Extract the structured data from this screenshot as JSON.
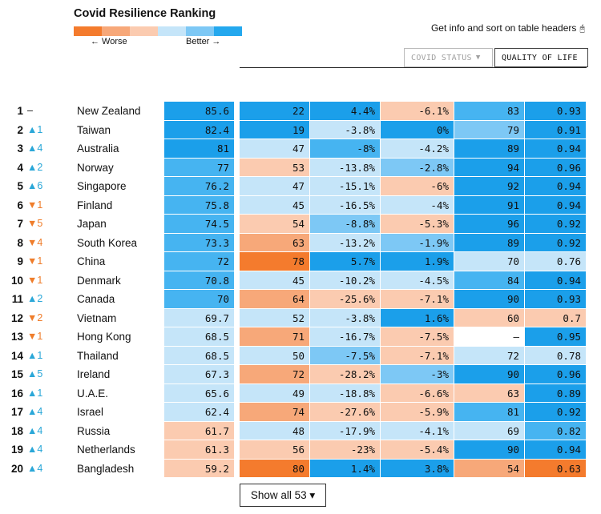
{
  "title": "Covid Resilience Ranking",
  "legend": {
    "worse": "← Worse",
    "better": "Better →",
    "colors": [
      "#f47b2d",
      "#f7a879",
      "#fbcbb0",
      "#c5e5f9",
      "#7dc8f5",
      "#24a8ee"
    ]
  },
  "info": {
    "text": "Get info and sort on table headers",
    "icon": "mouse-icon",
    "glyph": "🖰"
  },
  "tabs": [
    {
      "label": "COVID STATUS",
      "caret": "▼"
    },
    {
      "label": "QUALITY OF LIFE"
    }
  ],
  "rows": [
    {
      "rank": "1",
      "change": "–",
      "dir": "none",
      "country": "New Zealand",
      "vals": [
        "85.6",
        "22",
        "4.4%",
        "-6.1%",
        "83",
        "0.93"
      ],
      "colors": [
        "#1b9fea",
        "#1b9fea",
        "#1b9fea",
        "#fbcbb0",
        "#46b4f1",
        "#1b9fea"
      ]
    },
    {
      "rank": "2",
      "change": "▲1",
      "dir": "up",
      "country": "Taiwan",
      "vals": [
        "82.4",
        "19",
        "-3.8%",
        "0%",
        "79",
        "0.91"
      ],
      "colors": [
        "#1b9fea",
        "#1b9fea",
        "#c5e5f9",
        "#1b9fea",
        "#7dc8f5",
        "#1b9fea"
      ]
    },
    {
      "rank": "3",
      "change": "▲4",
      "dir": "up",
      "country": "Australia",
      "vals": [
        "81",
        "47",
        "-8%",
        "-4.2%",
        "89",
        "0.94"
      ],
      "colors": [
        "#1b9fea",
        "#c5e5f9",
        "#46b4f1",
        "#c5e5f9",
        "#1b9fea",
        "#1b9fea"
      ]
    },
    {
      "rank": "4",
      "change": "▲2",
      "dir": "up",
      "country": "Norway",
      "vals": [
        "77",
        "53",
        "-13.8%",
        "-2.8%",
        "94",
        "0.96"
      ],
      "colors": [
        "#46b4f1",
        "#fbcbb0",
        "#c5e5f9",
        "#7dc8f5",
        "#1b9fea",
        "#1b9fea"
      ]
    },
    {
      "rank": "5",
      "change": "▲6",
      "dir": "up",
      "country": "Singapore",
      "vals": [
        "76.2",
        "47",
        "-15.1%",
        "-6%",
        "92",
        "0.94"
      ],
      "colors": [
        "#46b4f1",
        "#c5e5f9",
        "#c5e5f9",
        "#fbcbb0",
        "#1b9fea",
        "#1b9fea"
      ]
    },
    {
      "rank": "6",
      "change": "▼1",
      "dir": "down",
      "country": "Finland",
      "vals": [
        "75.8",
        "45",
        "-16.5%",
        "-4%",
        "91",
        "0.94"
      ],
      "colors": [
        "#46b4f1",
        "#c5e5f9",
        "#c5e5f9",
        "#c5e5f9",
        "#1b9fea",
        "#1b9fea"
      ]
    },
    {
      "rank": "7",
      "change": "▼5",
      "dir": "down",
      "country": "Japan",
      "vals": [
        "74.5",
        "54",
        "-8.8%",
        "-5.3%",
        "96",
        "0.92"
      ],
      "colors": [
        "#46b4f1",
        "#fbcbb0",
        "#7dc8f5",
        "#fbcbb0",
        "#1b9fea",
        "#1b9fea"
      ]
    },
    {
      "rank": "8",
      "change": "▼4",
      "dir": "down",
      "country": "South Korea",
      "vals": [
        "73.3",
        "63",
        "-13.2%",
        "-1.9%",
        "89",
        "0.92"
      ],
      "colors": [
        "#46b4f1",
        "#f7a879",
        "#c5e5f9",
        "#7dc8f5",
        "#1b9fea",
        "#1b9fea"
      ]
    },
    {
      "rank": "9",
      "change": "▼1",
      "dir": "down",
      "country": "China",
      "vals": [
        "72",
        "78",
        "5.7%",
        "1.9%",
        "70",
        "0.76"
      ],
      "colors": [
        "#46b4f1",
        "#f47b2d",
        "#1b9fea",
        "#1b9fea",
        "#c5e5f9",
        "#c5e5f9"
      ]
    },
    {
      "rank": "10",
      "change": "▼1",
      "dir": "down",
      "country": "Denmark",
      "vals": [
        "70.8",
        "45",
        "-10.2%",
        "-4.5%",
        "84",
        "0.94"
      ],
      "colors": [
        "#46b4f1",
        "#c5e5f9",
        "#c5e5f9",
        "#c5e5f9",
        "#46b4f1",
        "#1b9fea"
      ]
    },
    {
      "rank": "11",
      "change": "▲2",
      "dir": "up",
      "country": "Canada",
      "vals": [
        "70",
        "64",
        "-25.6%",
        "-7.1%",
        "90",
        "0.93"
      ],
      "colors": [
        "#46b4f1",
        "#f7a879",
        "#fbcbb0",
        "#fbcbb0",
        "#1b9fea",
        "#1b9fea"
      ]
    },
    {
      "rank": "12",
      "change": "▼2",
      "dir": "down",
      "country": "Vietnam",
      "vals": [
        "69.7",
        "52",
        "-3.8%",
        "1.6%",
        "60",
        "0.7"
      ],
      "colors": [
        "#c5e5f9",
        "#c5e5f9",
        "#c5e5f9",
        "#1b9fea",
        "#fbcbb0",
        "#fbcbb0"
      ]
    },
    {
      "rank": "13",
      "change": "▼1",
      "dir": "down",
      "country": "Hong Kong",
      "vals": [
        "68.5",
        "71",
        "-16.7%",
        "-7.5%",
        "–",
        "0.95"
      ],
      "colors": [
        "#c5e5f9",
        "#f7a879",
        "#c5e5f9",
        "#fbcbb0",
        "#ffffff",
        "#1b9fea"
      ]
    },
    {
      "rank": "14",
      "change": "▲1",
      "dir": "up",
      "country": "Thailand",
      "vals": [
        "68.5",
        "50",
        "-7.5%",
        "-7.1%",
        "72",
        "0.78"
      ],
      "colors": [
        "#c5e5f9",
        "#c5e5f9",
        "#7dc8f5",
        "#fbcbb0",
        "#c5e5f9",
        "#c5e5f9"
      ]
    },
    {
      "rank": "15",
      "change": "▲5",
      "dir": "up",
      "country": "Ireland",
      "vals": [
        "67.3",
        "72",
        "-28.2%",
        "-3%",
        "90",
        "0.96"
      ],
      "colors": [
        "#c5e5f9",
        "#f7a879",
        "#fbcbb0",
        "#7dc8f5",
        "#1b9fea",
        "#1b9fea"
      ]
    },
    {
      "rank": "16",
      "change": "▲1",
      "dir": "up",
      "country": "U.A.E.",
      "vals": [
        "65.6",
        "49",
        "-18.8%",
        "-6.6%",
        "63",
        "0.89"
      ],
      "colors": [
        "#c5e5f9",
        "#c5e5f9",
        "#c5e5f9",
        "#fbcbb0",
        "#fbcbb0",
        "#1b9fea"
      ]
    },
    {
      "rank": "17",
      "change": "▲4",
      "dir": "up",
      "country": "Israel",
      "vals": [
        "62.4",
        "74",
        "-27.6%",
        "-5.9%",
        "81",
        "0.92"
      ],
      "colors": [
        "#c5e5f9",
        "#f7a879",
        "#fbcbb0",
        "#fbcbb0",
        "#46b4f1",
        "#1b9fea"
      ]
    },
    {
      "rank": "18",
      "change": "▲4",
      "dir": "up",
      "country": "Russia",
      "vals": [
        "61.7",
        "48",
        "-17.9%",
        "-4.1%",
        "69",
        "0.82"
      ],
      "colors": [
        "#fbcbb0",
        "#c5e5f9",
        "#c5e5f9",
        "#c5e5f9",
        "#c5e5f9",
        "#46b4f1"
      ]
    },
    {
      "rank": "19",
      "change": "▲4",
      "dir": "up",
      "country": "Netherlands",
      "vals": [
        "61.3",
        "56",
        "-23%",
        "-5.4%",
        "90",
        "0.94"
      ],
      "colors": [
        "#fbcbb0",
        "#fbcbb0",
        "#fbcbb0",
        "#fbcbb0",
        "#1b9fea",
        "#1b9fea"
      ]
    },
    {
      "rank": "20",
      "change": "▲4",
      "dir": "up",
      "country": "Bangladesh",
      "vals": [
        "59.2",
        "80",
        "1.4%",
        "3.8%",
        "54",
        "0.63"
      ],
      "colors": [
        "#fbcbb0",
        "#f47b2d",
        "#1b9fea",
        "#1b9fea",
        "#f7a879",
        "#f47b2d"
      ]
    }
  ],
  "show_all": {
    "label": "Show all 53",
    "caret": "▾"
  }
}
